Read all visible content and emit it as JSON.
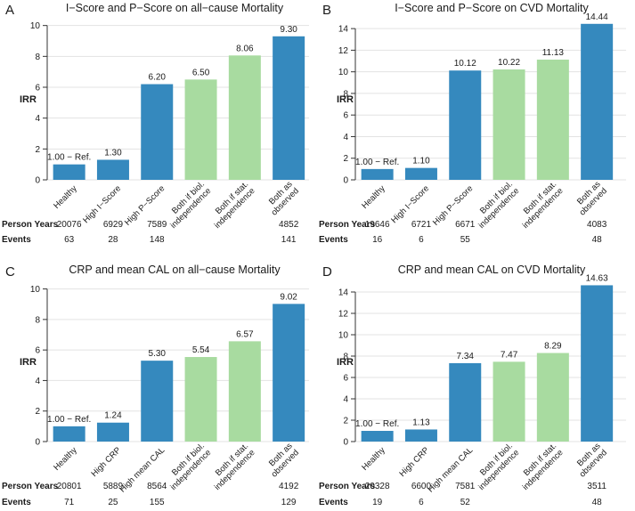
{
  "chart_data": [
    {
      "type": "bar",
      "panel_label": "A",
      "title": "I−Score and P−Score on all−cause Mortality",
      "ylabel": "IRR",
      "ylim": [
        0,
        10.5
      ],
      "yticks": [
        0,
        2,
        4,
        6,
        8,
        10
      ],
      "categories": [
        "Healthy",
        "High I−Score",
        "High P−Score",
        "Both if biol. independence",
        "Both if stat. independence",
        "Both as observed"
      ],
      "values": [
        1.0,
        1.3,
        6.2,
        6.5,
        8.06,
        9.3
      ],
      "value_labels": [
        "1.00 − Ref.",
        "1.30",
        "6.20",
        "6.50",
        "8.06",
        "9.30"
      ],
      "bar_colors": [
        "#3589be",
        "#3589be",
        "#3589be",
        "#a8dba0",
        "#a8dba0",
        "#3589be"
      ],
      "table": {
        "rows": [
          {
            "label": "Person Years",
            "values": [
              "20076",
              "6929",
              "7589",
              "",
              "",
              "4852"
            ]
          },
          {
            "label": "Events",
            "values": [
              "63",
              "28",
              "148",
              "",
              "",
              "141"
            ]
          }
        ]
      }
    },
    {
      "type": "bar",
      "panel_label": "B",
      "title": "I−Score and P−Score on CVD Mortality",
      "ylabel": "IRR",
      "ylim": [
        0,
        15
      ],
      "yticks": [
        0,
        2,
        4,
        6,
        8,
        10,
        12,
        14
      ],
      "categories": [
        "Healthy",
        "High I−Score",
        "High P−Score",
        "Both if biol. independence",
        "Both if stat. independence",
        "Both as observed"
      ],
      "values": [
        1.0,
        1.1,
        10.12,
        10.22,
        11.13,
        14.44
      ],
      "value_labels": [
        "1.00 − Ref.",
        "1.10",
        "10.12",
        "10.22",
        "11.13",
        "14.44"
      ],
      "bar_colors": [
        "#3589be",
        "#3589be",
        "#3589be",
        "#a8dba0",
        "#a8dba0",
        "#3589be"
      ],
      "table": {
        "rows": [
          {
            "label": "Person Years",
            "values": [
              "19646",
              "6721",
              "6671",
              "",
              "",
              "4083"
            ]
          },
          {
            "label": "Events",
            "values": [
              "16",
              "6",
              "55",
              "",
              "",
              "48"
            ]
          }
        ]
      }
    },
    {
      "type": "bar",
      "panel_label": "C",
      "title": "CRP and mean CAL on all−cause Mortality",
      "ylabel": "IRR",
      "ylim": [
        0,
        10.5
      ],
      "yticks": [
        0,
        2,
        4,
        6,
        8,
        10
      ],
      "categories": [
        "Healthy",
        "High CRP",
        "High mean CAL",
        "Both if biol. independence",
        "Both if stat. independence",
        "Both as observed"
      ],
      "values": [
        1.0,
        1.24,
        5.3,
        5.54,
        6.57,
        9.02
      ],
      "value_labels": [
        "1.00 − Ref.",
        "1.24",
        "5.30",
        "5.54",
        "6.57",
        "9.02"
      ],
      "bar_colors": [
        "#3589be",
        "#3589be",
        "#3589be",
        "#a8dba0",
        "#a8dba0",
        "#3589be"
      ],
      "table": {
        "rows": [
          {
            "label": "Person Years",
            "values": [
              "20801",
              "5889",
              "8564",
              "",
              "",
              "4192"
            ]
          },
          {
            "label": "Events",
            "values": [
              "71",
              "25",
              "155",
              "",
              "",
              "129"
            ]
          }
        ]
      }
    },
    {
      "type": "bar",
      "panel_label": "D",
      "title": "CRP and mean CAL on CVD Mortality",
      "ylabel": "IRR",
      "ylim": [
        0,
        15
      ],
      "yticks": [
        0,
        2,
        4,
        6,
        8,
        10,
        12,
        14
      ],
      "categories": [
        "Healthy",
        "High CRP",
        "High mean CAL",
        "Both if biol. independence",
        "Both if stat. independence",
        "Both as observed"
      ],
      "values": [
        1.0,
        1.13,
        7.34,
        7.47,
        8.29,
        14.63
      ],
      "value_labels": [
        "1.00 − Ref.",
        "1.13",
        "7.34",
        "7.47",
        "8.29",
        "14.63"
      ],
      "bar_colors": [
        "#3589be",
        "#3589be",
        "#3589be",
        "#a8dba0",
        "#a8dba0",
        "#3589be"
      ],
      "table": {
        "rows": [
          {
            "label": "Person Years",
            "values": [
              "20328",
              "6600",
              "7581",
              "",
              "",
              "3511"
            ]
          },
          {
            "label": "Events",
            "values": [
              "19",
              "6",
              "52",
              "",
              "",
              "48"
            ]
          }
        ]
      }
    }
  ]
}
